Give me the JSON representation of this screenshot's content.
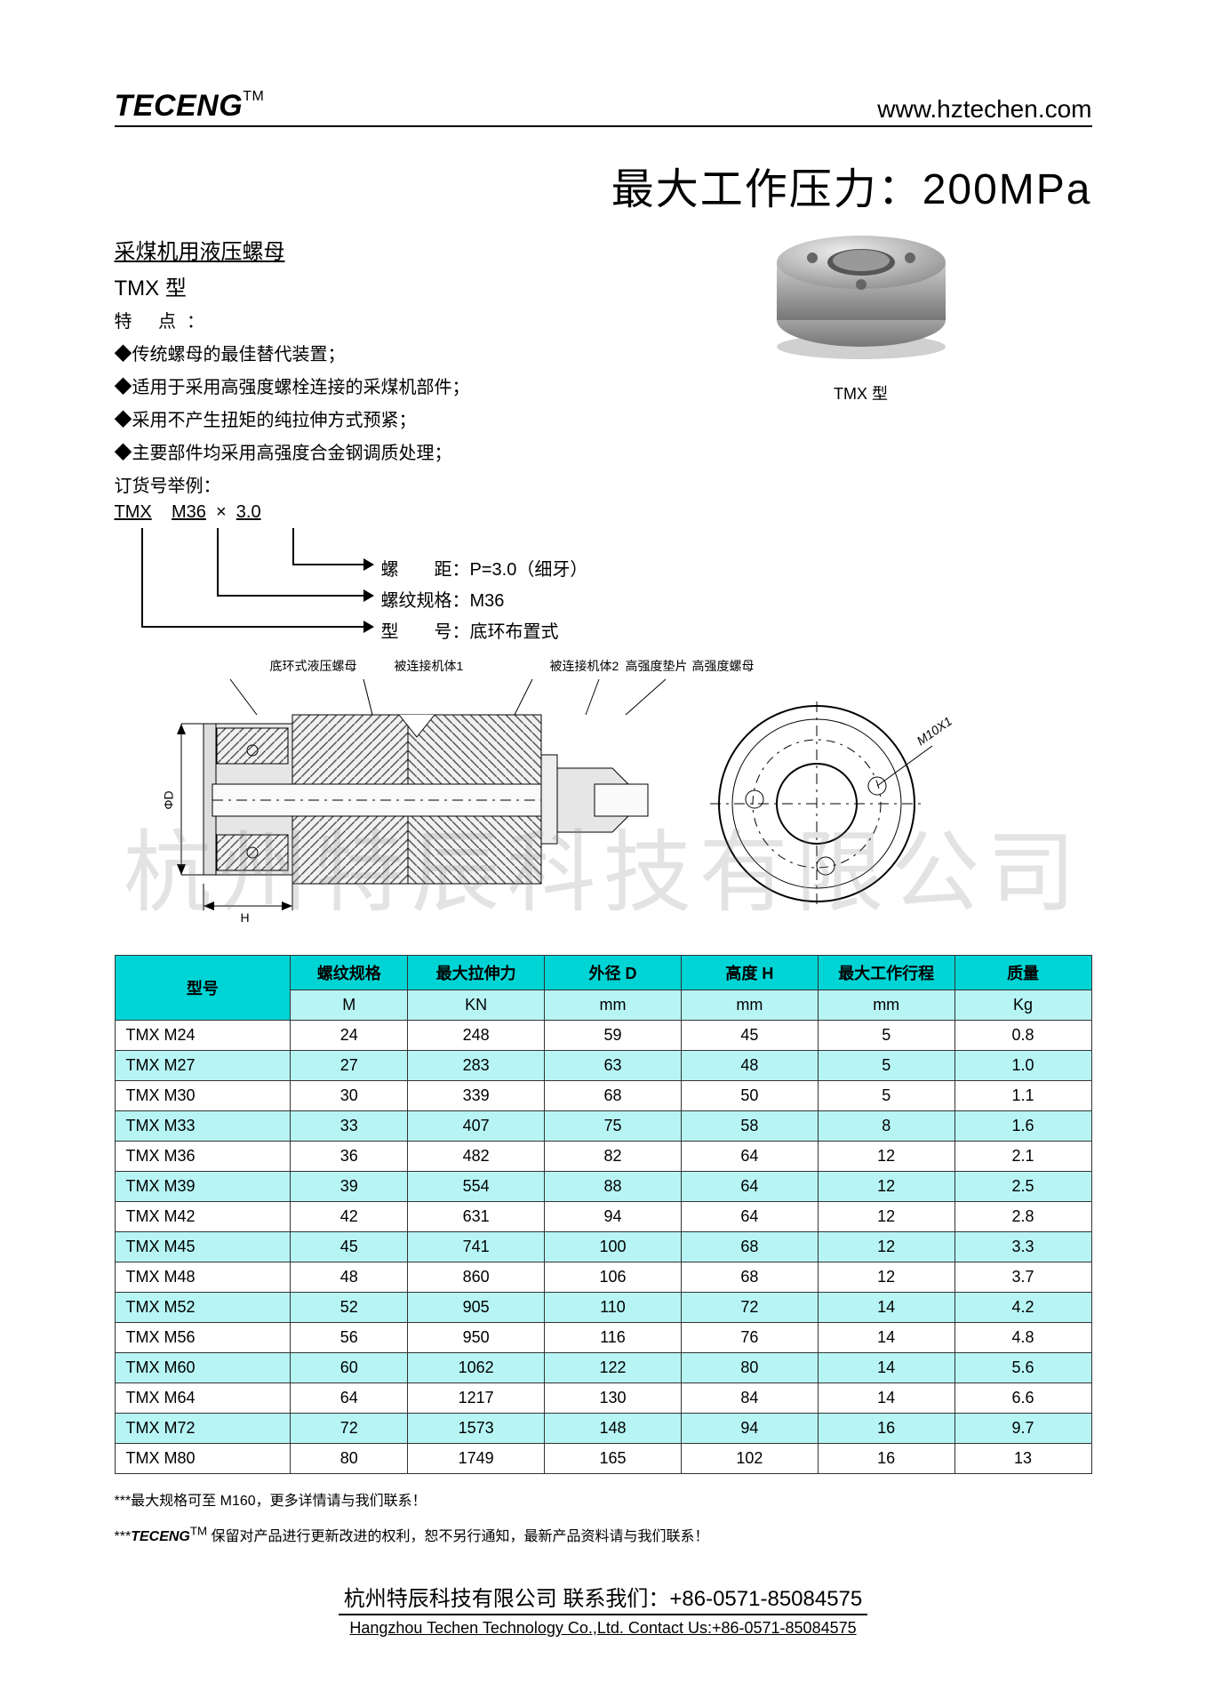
{
  "header": {
    "brand": "TECENG",
    "tm": "TM",
    "url": "www.hztechen.com"
  },
  "headline": "最大工作压力：200MPa",
  "section_title": "采煤机用液压螺母",
  "subtitle": "TMX 型",
  "features_label": "特 点：",
  "features": [
    "◆传统螺母的最佳替代装置；",
    "◆适用于采用高强度螺栓连接的采煤机部件；",
    "◆采用不产生扭矩的纯拉伸方式预紧；",
    "◆主要部件均采用高强度合金钢调质处理；"
  ],
  "order_label": "订货号举例：",
  "order_example_parts": [
    "TMX",
    "M36",
    "×",
    "3.0"
  ],
  "order_tree": {
    "line1_label": "螺　　距：",
    "line1_value": "P=3.0（细牙）",
    "line2_label": "螺纹规格：",
    "line2_value": "M36",
    "line3_label": "型　　号：",
    "line3_value": "底环布置式"
  },
  "product_caption": "TMX 型",
  "diagram_labels": {
    "l1": "底环式液压螺母",
    "l2": "被连接机体1",
    "l3": "被连接机体2",
    "l4": "高强度垫片",
    "l5": "高强度螺母",
    "od": "ΦD",
    "h": "H",
    "thread": "M10X1"
  },
  "watermark": "杭州特辰科技有限公司",
  "table": {
    "header_row1": [
      "型号",
      "螺纹规格",
      "最大拉伸力",
      "外径 D",
      "高度 H",
      "最大工作行程",
      "质量"
    ],
    "header_row2": [
      "",
      "M",
      "KN",
      "mm",
      "mm",
      "mm",
      "Kg"
    ],
    "col_widths_pct": [
      18,
      12,
      14,
      14,
      14,
      14,
      14
    ],
    "rows": [
      [
        "TMX M24",
        "24",
        "248",
        "59",
        "45",
        "5",
        "0.8"
      ],
      [
        "TMX M27",
        "27",
        "283",
        "63",
        "48",
        "5",
        "1.0"
      ],
      [
        "TMX M30",
        "30",
        "339",
        "68",
        "50",
        "5",
        "1.1"
      ],
      [
        "TMX M33",
        "33",
        "407",
        "75",
        "58",
        "8",
        "1.6"
      ],
      [
        "TMX M36",
        "36",
        "482",
        "82",
        "64",
        "12",
        "2.1"
      ],
      [
        "TMX M39",
        "39",
        "554",
        "88",
        "64",
        "12",
        "2.5"
      ],
      [
        "TMX M42",
        "42",
        "631",
        "94",
        "64",
        "12",
        "2.8"
      ],
      [
        "TMX M45",
        "45",
        "741",
        "100",
        "68",
        "12",
        "3.3"
      ],
      [
        "TMX M48",
        "48",
        "860",
        "106",
        "68",
        "12",
        "3.7"
      ],
      [
        "TMX M52",
        "52",
        "905",
        "110",
        "72",
        "14",
        "4.2"
      ],
      [
        "TMX M56",
        "56",
        "950",
        "116",
        "76",
        "14",
        "4.8"
      ],
      [
        "TMX M60",
        "60",
        "1062",
        "122",
        "80",
        "14",
        "5.6"
      ],
      [
        "TMX M64",
        "64",
        "1217",
        "130",
        "84",
        "14",
        "6.6"
      ],
      [
        "TMX M72",
        "72",
        "1573",
        "148",
        "94",
        "16",
        "9.7"
      ],
      [
        "TMX M80",
        "80",
        "1749",
        "165",
        "102",
        "16",
        "13"
      ]
    ]
  },
  "notes": {
    "n1": "***最大规格可至 M160，更多详情请与我们联系！",
    "n2_prefix": "***",
    "n2_brand": "TECENG",
    "n2_tm": "TM",
    "n2_rest": " 保留对产品进行更新改进的权利，恕不另行通知，最新产品资料请与我们联系！"
  },
  "footer": {
    "cn": "杭州特辰科技有限公司  联系我们：+86-0571-85084575",
    "en": "Hangzhou Techen Technology Co.,Ltd.   Contact Us:+86-0571-85084575"
  },
  "styling": {
    "page_bg": "#ffffff",
    "text_color": "#000000",
    "table_header_bg": "#00d4d4",
    "table_sub_bg": "#b7f5f5",
    "table_stripe_bg": "#b7f5f5",
    "table_border": "#333333",
    "watermark_color": "rgba(128,128,128,0.22)",
    "headline_fontsize": 48,
    "body_fontsize": 20,
    "table_fontsize": 18
  }
}
